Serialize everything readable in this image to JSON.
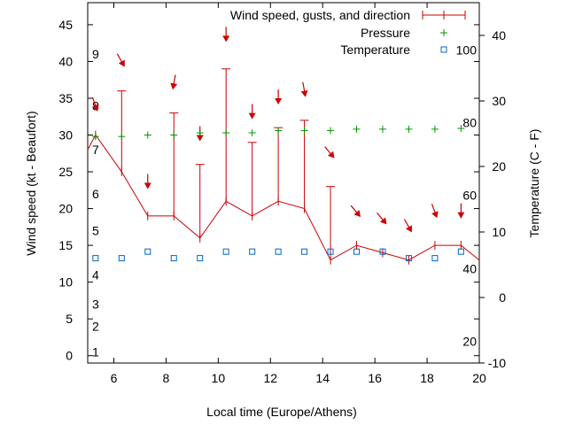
{
  "chart_data": {
    "type": "line",
    "xlabel": "Local time (Europe/Athens)",
    "ylabel": "Wind speed (kt - Beaufort)",
    "y2label": "Temperature (C - F)",
    "xlim": [
      5,
      20
    ],
    "ylim": [
      -1,
      48
    ],
    "y2lim": [
      -10,
      45
    ],
    "x_ticks": [
      6,
      8,
      10,
      12,
      14,
      16,
      18,
      20
    ],
    "y_ticks": [
      0,
      5,
      10,
      15,
      20,
      25,
      30,
      35,
      40,
      45
    ],
    "y2_ticks": [
      -10,
      0,
      10,
      20,
      30,
      40
    ],
    "beaufort_labels": [
      {
        "label": "1",
        "at": 0.5
      },
      {
        "label": "2",
        "at": 4
      },
      {
        "label": "3",
        "at": 7
      },
      {
        "label": "4",
        "at": 11
      },
      {
        "label": "5",
        "at": 17
      },
      {
        "label": "6",
        "at": 22
      },
      {
        "label": "7",
        "at": 28
      },
      {
        "label": "8",
        "at": 34
      },
      {
        "label": "9",
        "at": 41
      }
    ],
    "fahrenheit_labels": [
      {
        "label": "20",
        "at": -6.7
      },
      {
        "label": "40",
        "at": 4.4
      },
      {
        "label": "60",
        "at": 15.6
      },
      {
        "label": "80",
        "at": 26.7
      },
      {
        "label": "100",
        "at": 37.8
      }
    ],
    "legend_position": "top-right",
    "series": [
      {
        "name": "Wind speed, gusts, and direction",
        "color": "#cc0000",
        "x": [
          5.3,
          6.3,
          7.3,
          8.3,
          9.3,
          10.3,
          11.3,
          12.3,
          13.3,
          14.3,
          15.3,
          16.3,
          17.3,
          18.3,
          19.3
        ],
        "speed": [
          30,
          25,
          19,
          19,
          16,
          21,
          19,
          21,
          20,
          13,
          15,
          14,
          13,
          15,
          15
        ],
        "gust": [
          null,
          36,
          null,
          33,
          26,
          39,
          29,
          31,
          32,
          23,
          null,
          null,
          null,
          null,
          null
        ],
        "arrow_y": [
          34,
          40,
          23.5,
          37,
          30,
          43.5,
          33,
          35,
          36,
          27.5,
          19.5,
          18.5,
          17.5,
          19.5,
          19.5
        ],
        "arrow_dir_deg": [
          340,
          330,
          0,
          10,
          0,
          0,
          0,
          0,
          350,
          320,
          320,
          320,
          330,
          340,
          0
        ],
        "line_start": [
          5,
          28
        ],
        "line_end": [
          20,
          13
        ]
      },
      {
        "name": "Pressure",
        "color": "#009900",
        "axis": "y",
        "x": [
          5.3,
          6.3,
          7.3,
          8.3,
          9.3,
          10.3,
          11.3,
          12.3,
          13.3,
          14.3,
          15.3,
          16.3,
          17.3,
          18.3,
          19.3
        ],
        "values": [
          29.8,
          29.8,
          30.0,
          30.0,
          30.3,
          30.3,
          30.3,
          30.6,
          30.6,
          30.6,
          30.8,
          30.8,
          30.8,
          30.8,
          30.9
        ]
      },
      {
        "name": "Temperature",
        "color": "#0066cc",
        "axis": "y2",
        "x": [
          5.3,
          6.3,
          7.3,
          8.3,
          9.3,
          10.3,
          11.3,
          12.3,
          13.3,
          14.3,
          15.3,
          16.3,
          17.3,
          18.3,
          19.3
        ],
        "values": [
          6,
          6,
          7,
          6,
          6,
          7,
          7,
          7,
          7,
          7,
          7,
          7,
          6,
          6,
          7
        ]
      }
    ]
  }
}
